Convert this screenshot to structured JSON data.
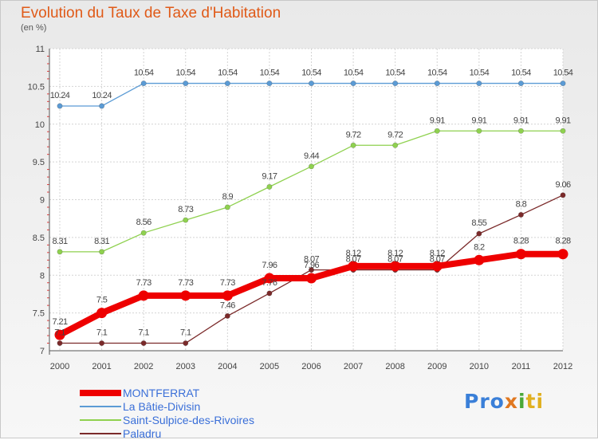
{
  "chart_data": {
    "type": "line",
    "title": "Evolution du Taux de Taxe d'Habitation",
    "subtitle": "(en %)",
    "x": [
      "2000",
      "2001",
      "2002",
      "2003",
      "2004",
      "2005",
      "2006",
      "2007",
      "2008",
      "2009",
      "2010",
      "2011",
      "2012"
    ],
    "ylim": [
      7,
      11
    ],
    "yticks": [
      "7",
      "7.5",
      "8",
      "8.5",
      "9",
      "9.5",
      "10",
      "10.5",
      "11"
    ],
    "grid": true,
    "legend_position": "bottom-left",
    "series": [
      {
        "name": "MONTFERRAT",
        "color": "#ee0000",
        "values": [
          7.21,
          7.5,
          7.73,
          7.73,
          7.73,
          7.96,
          7.96,
          8.12,
          8.12,
          8.12,
          8.2,
          8.28,
          8.28
        ],
        "labels": [
          "7.21",
          "7.5",
          "7.73",
          "7.73",
          "7.73",
          "7.96",
          "7.96",
          "8.12",
          "8.12",
          "8.12",
          "8.2",
          "8.28",
          "8.28"
        ]
      },
      {
        "name": "La Bâtie-Divisin",
        "color": "#5b9bd5",
        "values": [
          10.24,
          10.24,
          10.54,
          10.54,
          10.54,
          10.54,
          10.54,
          10.54,
          10.54,
          10.54,
          10.54,
          10.54,
          10.54
        ],
        "labels": [
          "10.24",
          "10.24",
          "10.54",
          "10.54",
          "10.54",
          "10.54",
          "10.54",
          "10.54",
          "10.54",
          "10.54",
          "10.54",
          "10.54",
          "10.54"
        ]
      },
      {
        "name": "Saint-Sulpice-des-Rivoires",
        "color": "#8fd14f",
        "values": [
          8.31,
          8.31,
          8.56,
          8.73,
          8.9,
          9.17,
          9.44,
          9.72,
          9.72,
          9.91,
          9.91,
          9.91,
          9.91
        ],
        "labels": [
          "8.31",
          "8.31",
          "8.56",
          "8.73",
          "8.9",
          "9.17",
          "9.44",
          "9.72",
          "9.72",
          "9.91",
          "9.91",
          "9.91",
          "9.91"
        ]
      },
      {
        "name": "Paladru",
        "color": "#7b2a2a",
        "values": [
          7.1,
          7.1,
          7.1,
          7.1,
          7.46,
          7.76,
          8.07,
          8.07,
          8.07,
          8.07,
          8.55,
          8.8,
          9.06
        ],
        "labels": [
          "7.1",
          "7.1",
          "7.1",
          "7.1",
          "7.46",
          "7.76",
          "8.07",
          "8.07",
          "8.07",
          "8.07",
          "8.55",
          "8.8",
          "9.06"
        ]
      }
    ]
  },
  "logo": {
    "p1": "Pro",
    "p2": "x",
    "p3": "i",
    "p4": "ti"
  }
}
